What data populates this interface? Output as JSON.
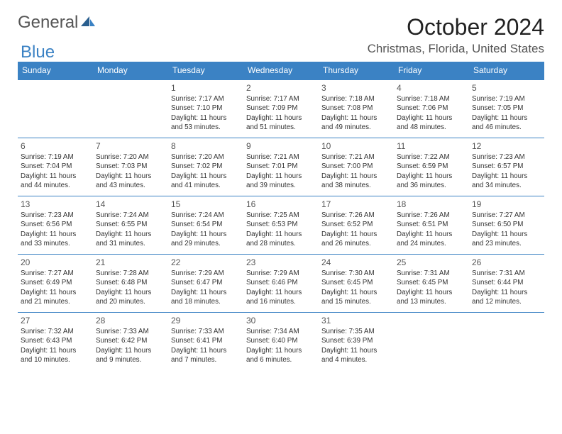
{
  "brand": {
    "general": "General",
    "blue": "Blue"
  },
  "title": "October 2024",
  "location": "Christmas, Florida, United States",
  "colors": {
    "header_bg": "#3b82c4",
    "header_fg": "#ffffff",
    "rule": "#3b82c4",
    "page_bg": "#ffffff",
    "text": "#333333",
    "muted": "#555555"
  },
  "day_headers": [
    "Sunday",
    "Monday",
    "Tuesday",
    "Wednesday",
    "Thursday",
    "Friday",
    "Saturday"
  ],
  "weeks": [
    [
      null,
      null,
      {
        "n": "1",
        "sr": "Sunrise: 7:17 AM",
        "ss": "Sunset: 7:10 PM",
        "d1": "Daylight: 11 hours",
        "d2": "and 53 minutes."
      },
      {
        "n": "2",
        "sr": "Sunrise: 7:17 AM",
        "ss": "Sunset: 7:09 PM",
        "d1": "Daylight: 11 hours",
        "d2": "and 51 minutes."
      },
      {
        "n": "3",
        "sr": "Sunrise: 7:18 AM",
        "ss": "Sunset: 7:08 PM",
        "d1": "Daylight: 11 hours",
        "d2": "and 49 minutes."
      },
      {
        "n": "4",
        "sr": "Sunrise: 7:18 AM",
        "ss": "Sunset: 7:06 PM",
        "d1": "Daylight: 11 hours",
        "d2": "and 48 minutes."
      },
      {
        "n": "5",
        "sr": "Sunrise: 7:19 AM",
        "ss": "Sunset: 7:05 PM",
        "d1": "Daylight: 11 hours",
        "d2": "and 46 minutes."
      }
    ],
    [
      {
        "n": "6",
        "sr": "Sunrise: 7:19 AM",
        "ss": "Sunset: 7:04 PM",
        "d1": "Daylight: 11 hours",
        "d2": "and 44 minutes."
      },
      {
        "n": "7",
        "sr": "Sunrise: 7:20 AM",
        "ss": "Sunset: 7:03 PM",
        "d1": "Daylight: 11 hours",
        "d2": "and 43 minutes."
      },
      {
        "n": "8",
        "sr": "Sunrise: 7:20 AM",
        "ss": "Sunset: 7:02 PM",
        "d1": "Daylight: 11 hours",
        "d2": "and 41 minutes."
      },
      {
        "n": "9",
        "sr": "Sunrise: 7:21 AM",
        "ss": "Sunset: 7:01 PM",
        "d1": "Daylight: 11 hours",
        "d2": "and 39 minutes."
      },
      {
        "n": "10",
        "sr": "Sunrise: 7:21 AM",
        "ss": "Sunset: 7:00 PM",
        "d1": "Daylight: 11 hours",
        "d2": "and 38 minutes."
      },
      {
        "n": "11",
        "sr": "Sunrise: 7:22 AM",
        "ss": "Sunset: 6:59 PM",
        "d1": "Daylight: 11 hours",
        "d2": "and 36 minutes."
      },
      {
        "n": "12",
        "sr": "Sunrise: 7:23 AM",
        "ss": "Sunset: 6:57 PM",
        "d1": "Daylight: 11 hours",
        "d2": "and 34 minutes."
      }
    ],
    [
      {
        "n": "13",
        "sr": "Sunrise: 7:23 AM",
        "ss": "Sunset: 6:56 PM",
        "d1": "Daylight: 11 hours",
        "d2": "and 33 minutes."
      },
      {
        "n": "14",
        "sr": "Sunrise: 7:24 AM",
        "ss": "Sunset: 6:55 PM",
        "d1": "Daylight: 11 hours",
        "d2": "and 31 minutes."
      },
      {
        "n": "15",
        "sr": "Sunrise: 7:24 AM",
        "ss": "Sunset: 6:54 PM",
        "d1": "Daylight: 11 hours",
        "d2": "and 29 minutes."
      },
      {
        "n": "16",
        "sr": "Sunrise: 7:25 AM",
        "ss": "Sunset: 6:53 PM",
        "d1": "Daylight: 11 hours",
        "d2": "and 28 minutes."
      },
      {
        "n": "17",
        "sr": "Sunrise: 7:26 AM",
        "ss": "Sunset: 6:52 PM",
        "d1": "Daylight: 11 hours",
        "d2": "and 26 minutes."
      },
      {
        "n": "18",
        "sr": "Sunrise: 7:26 AM",
        "ss": "Sunset: 6:51 PM",
        "d1": "Daylight: 11 hours",
        "d2": "and 24 minutes."
      },
      {
        "n": "19",
        "sr": "Sunrise: 7:27 AM",
        "ss": "Sunset: 6:50 PM",
        "d1": "Daylight: 11 hours",
        "d2": "and 23 minutes."
      }
    ],
    [
      {
        "n": "20",
        "sr": "Sunrise: 7:27 AM",
        "ss": "Sunset: 6:49 PM",
        "d1": "Daylight: 11 hours",
        "d2": "and 21 minutes."
      },
      {
        "n": "21",
        "sr": "Sunrise: 7:28 AM",
        "ss": "Sunset: 6:48 PM",
        "d1": "Daylight: 11 hours",
        "d2": "and 20 minutes."
      },
      {
        "n": "22",
        "sr": "Sunrise: 7:29 AM",
        "ss": "Sunset: 6:47 PM",
        "d1": "Daylight: 11 hours",
        "d2": "and 18 minutes."
      },
      {
        "n": "23",
        "sr": "Sunrise: 7:29 AM",
        "ss": "Sunset: 6:46 PM",
        "d1": "Daylight: 11 hours",
        "d2": "and 16 minutes."
      },
      {
        "n": "24",
        "sr": "Sunrise: 7:30 AM",
        "ss": "Sunset: 6:45 PM",
        "d1": "Daylight: 11 hours",
        "d2": "and 15 minutes."
      },
      {
        "n": "25",
        "sr": "Sunrise: 7:31 AM",
        "ss": "Sunset: 6:45 PM",
        "d1": "Daylight: 11 hours",
        "d2": "and 13 minutes."
      },
      {
        "n": "26",
        "sr": "Sunrise: 7:31 AM",
        "ss": "Sunset: 6:44 PM",
        "d1": "Daylight: 11 hours",
        "d2": "and 12 minutes."
      }
    ],
    [
      {
        "n": "27",
        "sr": "Sunrise: 7:32 AM",
        "ss": "Sunset: 6:43 PM",
        "d1": "Daylight: 11 hours",
        "d2": "and 10 minutes."
      },
      {
        "n": "28",
        "sr": "Sunrise: 7:33 AM",
        "ss": "Sunset: 6:42 PM",
        "d1": "Daylight: 11 hours",
        "d2": "and 9 minutes."
      },
      {
        "n": "29",
        "sr": "Sunrise: 7:33 AM",
        "ss": "Sunset: 6:41 PM",
        "d1": "Daylight: 11 hours",
        "d2": "and 7 minutes."
      },
      {
        "n": "30",
        "sr": "Sunrise: 7:34 AM",
        "ss": "Sunset: 6:40 PM",
        "d1": "Daylight: 11 hours",
        "d2": "and 6 minutes."
      },
      {
        "n": "31",
        "sr": "Sunrise: 7:35 AM",
        "ss": "Sunset: 6:39 PM",
        "d1": "Daylight: 11 hours",
        "d2": "and 4 minutes."
      },
      null,
      null
    ]
  ]
}
